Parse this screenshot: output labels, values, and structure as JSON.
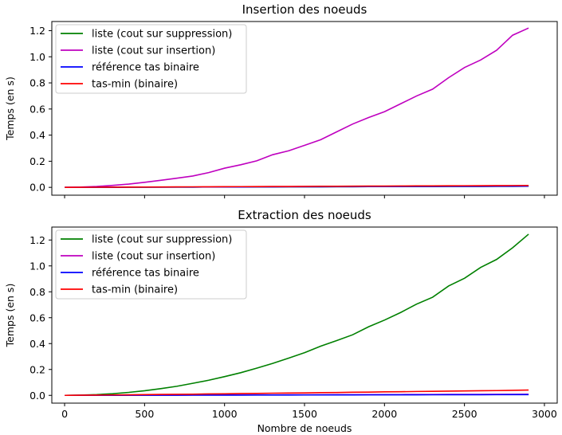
{
  "chart_data": [
    {
      "type": "line",
      "title": "Insertion des noeuds",
      "xlabel": "",
      "ylabel": "Temps (en s)",
      "xlim": [
        -80,
        3080
      ],
      "ylim": [
        -0.06,
        1.27
      ],
      "xticks": [
        0,
        500,
        1000,
        1500,
        2000,
        2500,
        3000
      ],
      "xtick_labels_visible": false,
      "yticks": [
        0.0,
        0.2,
        0.4,
        0.6,
        0.8,
        1.0,
        1.2
      ],
      "ytick_labels": [
        "0.0",
        "0.2",
        "0.4",
        "0.6",
        "0.8",
        "1.0",
        "1.2"
      ],
      "grid": false,
      "legend_position": "upper-left",
      "x": [
        1,
        101,
        201,
        301,
        401,
        501,
        601,
        701,
        801,
        901,
        1001,
        1101,
        1201,
        1301,
        1401,
        1501,
        1601,
        1701,
        1801,
        1901,
        2001,
        2101,
        2201,
        2301,
        2401,
        2501,
        2601,
        2701,
        2801,
        2901
      ],
      "series": [
        {
          "name": "liste (cout sur suppression)",
          "color": "#008000",
          "values": [
            0.0,
            0.0003,
            0.0006,
            0.0009,
            0.0012,
            0.0015,
            0.0018,
            0.002,
            0.0023,
            0.0026,
            0.0029,
            0.0032,
            0.0035,
            0.0038,
            0.0041,
            0.0044,
            0.0047,
            0.005,
            0.0053,
            0.0056,
            0.0059,
            0.0062,
            0.0065,
            0.0068,
            0.0071,
            0.0074,
            0.0077,
            0.008,
            0.0083,
            0.0086
          ]
        },
        {
          "name": "liste (cout sur insertion)",
          "color": "#bf00bf",
          "values": [
            0.0,
            0.002,
            0.007,
            0.015,
            0.025,
            0.039,
            0.054,
            0.07,
            0.087,
            0.113,
            0.147,
            0.173,
            0.203,
            0.25,
            0.28,
            0.322,
            0.365,
            0.425,
            0.485,
            0.535,
            0.58,
            0.64,
            0.7,
            0.752,
            0.84,
            0.918,
            0.975,
            1.05,
            1.165,
            1.22
          ]
        },
        {
          "name": "référence tas binaire",
          "color": "#0000ff",
          "values": [
            0.0,
            0.0002,
            0.0005,
            0.0008,
            0.0011,
            0.0014,
            0.0017,
            0.002,
            0.0023,
            0.0026,
            0.0029,
            0.0032,
            0.0035,
            0.0038,
            0.0041,
            0.0044,
            0.0047,
            0.005,
            0.0053,
            0.0056,
            0.0059,
            0.0062,
            0.0065,
            0.0068,
            0.0071,
            0.0074,
            0.0077,
            0.008,
            0.0083,
            0.0086
          ]
        },
        {
          "name": "tas-min (binaire)",
          "color": "#ff0000",
          "values": [
            0.0,
            0.0005,
            0.001,
            0.0015,
            0.002,
            0.0025,
            0.003,
            0.0035,
            0.004,
            0.0045,
            0.005,
            0.0055,
            0.006,
            0.0065,
            0.007,
            0.0075,
            0.008,
            0.0085,
            0.009,
            0.0095,
            0.01,
            0.0105,
            0.011,
            0.0115,
            0.012,
            0.0125,
            0.013,
            0.0135,
            0.014,
            0.0145
          ]
        }
      ]
    },
    {
      "type": "line",
      "title": "Extraction des noeuds",
      "xlabel": "Nombre de noeuds",
      "ylabel": "Temps (en s)",
      "xlim": [
        -80,
        3080
      ],
      "ylim": [
        -0.06,
        1.3
      ],
      "xticks": [
        0,
        500,
        1000,
        1500,
        2000,
        2500,
        3000
      ],
      "xtick_labels": [
        "0",
        "500",
        "1000",
        "1500",
        "2000",
        "2500",
        "3000"
      ],
      "yticks": [
        0.0,
        0.2,
        0.4,
        0.6,
        0.8,
        1.0,
        1.2
      ],
      "ytick_labels": [
        "0.0",
        "0.2",
        "0.4",
        "0.6",
        "0.8",
        "1.0",
        "1.2"
      ],
      "grid": false,
      "legend_position": "upper-left",
      "x": [
        1,
        101,
        201,
        301,
        401,
        501,
        601,
        701,
        801,
        901,
        1001,
        1101,
        1201,
        1301,
        1401,
        1501,
        1601,
        1701,
        1801,
        1901,
        2001,
        2101,
        2201,
        2301,
        2401,
        2501,
        2601,
        2701,
        2801,
        2901
      ],
      "series": [
        {
          "name": "liste (cout sur suppression)",
          "color": "#008000",
          "values": [
            0.0,
            0.002,
            0.006,
            0.013,
            0.023,
            0.036,
            0.052,
            0.07,
            0.093,
            0.117,
            0.145,
            0.175,
            0.21,
            0.247,
            0.288,
            0.33,
            0.38,
            0.423,
            0.468,
            0.53,
            0.582,
            0.64,
            0.705,
            0.758,
            0.845,
            0.905,
            0.988,
            1.05,
            1.14,
            1.245
          ]
        },
        {
          "name": "liste (cout sur insertion)",
          "color": "#bf00bf",
          "values": [
            0.0,
            0.0003,
            0.0006,
            0.0009,
            0.0012,
            0.0015,
            0.0018,
            0.002,
            0.0023,
            0.0026,
            0.0029,
            0.0032,
            0.0035,
            0.0038,
            0.0041,
            0.0044,
            0.0047,
            0.005,
            0.0053,
            0.0056,
            0.0059,
            0.0062,
            0.0065,
            0.0068,
            0.0071,
            0.0074,
            0.0077,
            0.008,
            0.0083,
            0.0086
          ]
        },
        {
          "name": "référence tas binaire",
          "color": "#0000ff",
          "values": [
            0.0,
            0.0002,
            0.0004,
            0.0006,
            0.0008,
            0.001,
            0.0012,
            0.0014,
            0.0016,
            0.0018,
            0.002,
            0.0022,
            0.0024,
            0.0026,
            0.0028,
            0.003,
            0.0032,
            0.0034,
            0.0036,
            0.0038,
            0.004,
            0.0042,
            0.0044,
            0.0046,
            0.0048,
            0.005,
            0.0052,
            0.0054,
            0.0056,
            0.0058
          ]
        },
        {
          "name": "tas-min (binaire)",
          "color": "#ff0000",
          "values": [
            0.0,
            0.001,
            0.002,
            0.003,
            0.004,
            0.006,
            0.007,
            0.008,
            0.009,
            0.011,
            0.012,
            0.014,
            0.015,
            0.017,
            0.018,
            0.019,
            0.021,
            0.022,
            0.024,
            0.025,
            0.027,
            0.028,
            0.03,
            0.031,
            0.033,
            0.034,
            0.036,
            0.037,
            0.039,
            0.041
          ]
        }
      ]
    }
  ]
}
